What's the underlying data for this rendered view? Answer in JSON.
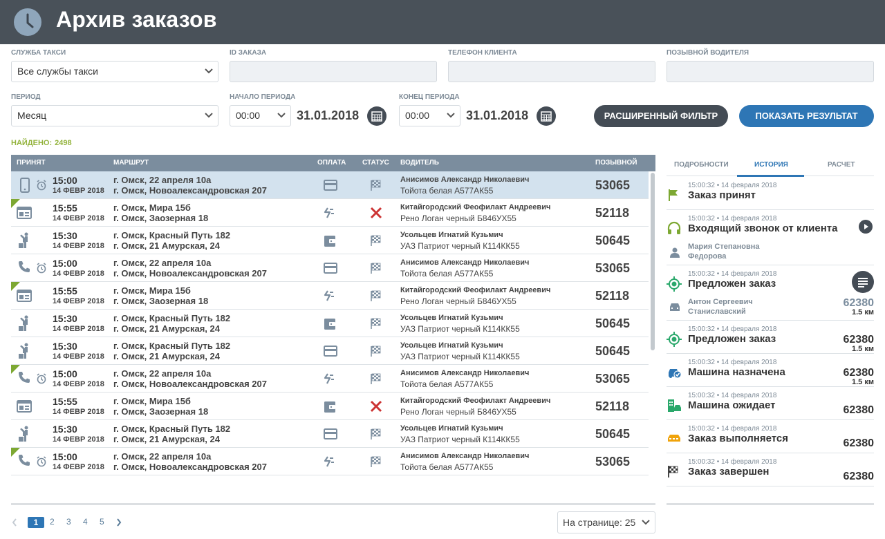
{
  "header": {
    "title": "Архив заказов"
  },
  "filters": {
    "service_label": "СЛУЖБА ТАКСИ",
    "service_value": "Все службы такси",
    "order_id_label": "ID ЗАКАЗА",
    "order_id_value": "",
    "phone_label": "ТЕЛЕФОН КЛИЕНТА",
    "phone_value": "",
    "driver_call_label": "ПОЗЫВНОЙ ВОДИТЕЛЯ",
    "driver_call_value": "",
    "period_label": "ПЕРИОД",
    "period_value": "Месяц",
    "start_label": "НАЧАЛО ПЕРИОДА",
    "start_time": "00:00",
    "start_date": "31.01.2018",
    "end_label": "КОНЕЦ ПЕРИОДА",
    "end_time": "00:00",
    "end_date": "31.01.2018",
    "advanced_button": "РАСШИРЕННЫЙ ФИЛЬТР",
    "show_button": "ПОКАЗАТЬ РЕЗУЛЬТАТ"
  },
  "found": {
    "label": "НАЙДЕНО:",
    "count": "2498"
  },
  "table": {
    "columns": {
      "accepted": "ПРИНЯТ",
      "route": "МАРШРУТ",
      "payment": "ОПЛАТА",
      "status": "СТАТУС",
      "driver": "ВОДИТЕЛЬ",
      "callsign": "ПОЗЫВНОЙ"
    },
    "rows": [
      {
        "time": "15:00",
        "date": "14 ФЕВР 2018",
        "from": "г. Омск, 22 апреля 10а",
        "to": "г. Омск, Новоалександровская 207",
        "driver": "Анисимов Александр Николаевич",
        "car": "Тойота белая А577АК55",
        "callsign": "53065",
        "source": "mobile",
        "alarm": true,
        "payment": "card",
        "status": "done",
        "corner": false,
        "selected": true
      },
      {
        "time": "15:55",
        "date": "14 ФЕВР 2018",
        "from": "г. Омск, Мира 15б",
        "to": "г. Омск, Заозерная 18",
        "driver": "Китайгородский Феофилакт Андреевич",
        "car": "Рено Логан черный Б846УХ55",
        "callsign": "52118",
        "source": "web",
        "alarm": false,
        "payment": "transfer",
        "status": "cancel",
        "corner": true,
        "selected": false
      },
      {
        "time": "15:30",
        "date": "14 ФЕВР 2018",
        "from": "г. Омск, Красный Путь 182",
        "to": "г. Омск, 21 Амурская, 24",
        "driver": "Усольцев Игнатий Кузьмич",
        "car": "УАЗ Патриот черный К114КК55",
        "callsign": "50645",
        "source": "street",
        "alarm": false,
        "payment": "wallet",
        "status": "done",
        "corner": false,
        "selected": false
      },
      {
        "time": "15:00",
        "date": "14 ФЕВР 2018",
        "from": "г. Омск, 22 апреля 10а",
        "to": "г. Омск, Новоалександровская 207",
        "driver": "Анисимов Александр Николаевич",
        "car": "Тойота белая А577АК55",
        "callsign": "53065",
        "source": "phone",
        "alarm": true,
        "payment": "card",
        "status": "done",
        "corner": false,
        "selected": false
      },
      {
        "time": "15:55",
        "date": "14 ФЕВР 2018",
        "from": "г. Омск, Мира 15б",
        "to": "г. Омск, Заозерная 18",
        "driver": "Китайгородский Феофилакт Андреевич",
        "car": "Рено Логан черный Б846УХ55",
        "callsign": "52118",
        "source": "web",
        "alarm": false,
        "payment": "transfer",
        "status": "done",
        "corner": true,
        "selected": false
      },
      {
        "time": "15:30",
        "date": "14 ФЕВР 2018",
        "from": "г. Омск, Красный Путь 182",
        "to": "г. Омск, 21 Амурская, 24",
        "driver": "Усольцев Игнатий Кузьмич",
        "car": "УАЗ Патриот черный К114КК55",
        "callsign": "50645",
        "source": "street",
        "alarm": false,
        "payment": "wallet",
        "status": "done",
        "corner": false,
        "selected": false
      },
      {
        "time": "15:30",
        "date": "14 ФЕВР 2018",
        "from": "г. Омск, Красный Путь 182",
        "to": "г. Омск, 21 Амурская, 24",
        "driver": "Усольцев Игнатий Кузьмич",
        "car": "УАЗ Патриот черный К114КК55",
        "callsign": "50645",
        "source": "street",
        "alarm": false,
        "payment": "card",
        "status": "done",
        "corner": false,
        "selected": false
      },
      {
        "time": "15:00",
        "date": "14 ФЕВР 2018",
        "from": "г. Омск, 22 апреля 10а",
        "to": "г. Омск, Новоалександровская 207",
        "driver": "Анисимов Александр Николаевич",
        "car": "Тойота белая А577АК55",
        "callsign": "53065",
        "source": "phone",
        "alarm": true,
        "payment": "transfer",
        "status": "done",
        "corner": true,
        "selected": false
      },
      {
        "time": "15:55",
        "date": "14 ФЕВР 2018",
        "from": "г. Омск, Мира 15б",
        "to": "г. Омск, Заозерная 18",
        "driver": "Китайгородский Феофилакт Андреевич",
        "car": "Рено Логан черный Б846УХ55",
        "callsign": "52118",
        "source": "web",
        "alarm": false,
        "payment": "wallet",
        "status": "cancel",
        "corner": false,
        "selected": false
      },
      {
        "time": "15:30",
        "date": "14 ФЕВР 2018",
        "from": "г. Омск, Красный Путь 182",
        "to": "г. Омск, 21 Амурская, 24",
        "driver": "Усольцев Игнатий Кузьмич",
        "car": "УАЗ Патриот черный К114КК55",
        "callsign": "50645",
        "source": "street",
        "alarm": false,
        "payment": "card",
        "status": "done",
        "corner": false,
        "selected": false
      },
      {
        "time": "15:00",
        "date": "14 ФЕВР 2018",
        "from": "г. Омск, 22 апреля 10а",
        "to": "г. Омск, Новоалександровская 207",
        "driver": "Анисимов Александр Николаевич",
        "car": "Тойота белая А577АК55",
        "callsign": "53065",
        "source": "phone",
        "alarm": true,
        "payment": "transfer",
        "status": "done",
        "corner": true,
        "selected": false
      }
    ]
  },
  "pagination": {
    "pages": [
      "1",
      "2",
      "3",
      "4",
      "5"
    ],
    "current": "1",
    "per_page": "На странице: 25"
  },
  "right_panel": {
    "tabs": [
      "ПОДРОБНОСТИ",
      "ИСТОРИЯ",
      "РАСЧЕТ"
    ],
    "active_tab": "ИСТОРИЯ",
    "history": [
      {
        "ts": "15:00:32 • 14 февраля 2018",
        "title": "Заказ принят",
        "icon": "flag-icon"
      },
      {
        "ts": "15:00:32 • 14 февраля 2018",
        "title": "Входящий звонок от клиента",
        "icon": "headset-icon",
        "person": "Мария Степановна\nФедорова"
      },
      {
        "ts": "15:00:32 • 14 февраля 2018",
        "title": "Предложен заказ",
        "icon": "target-icon",
        "driver": "Антон Сергеевич\nСтаниславский",
        "callsign": "62380",
        "km": "1.5 км"
      },
      {
        "ts": "15:00:32 • 14 февраля 2018",
        "title": "Предложен заказ",
        "icon": "target-icon",
        "callsign": "62380",
        "km": "1.5 км"
      },
      {
        "ts": "15:00:32 • 14 февраля 2018",
        "title": "Машина назначена",
        "icon": "car-check-icon",
        "callsign": "62380",
        "km": "1.5 км"
      },
      {
        "ts": "15:00:32 • 14 февраля 2018",
        "title": "Машина ожидает",
        "icon": "building-car-icon",
        "callsign": "62380"
      },
      {
        "ts": "15:00:32 • 14 февраля 2018",
        "title": "Заказ выполняется",
        "icon": "taxi-icon",
        "callsign": "62380"
      },
      {
        "ts": "15:00:32 • 14 февраля 2018",
        "title": "Заказ завершен",
        "icon": "finish-flag-icon",
        "callsign": "62380"
      }
    ]
  },
  "colors": {
    "header_bg": "#495159",
    "accent_blue": "#2e76b5",
    "green": "#7da833",
    "cancel_red": "#cc3333",
    "table_header": "#7b8d9e",
    "selected_row": "#d3e2ee"
  }
}
